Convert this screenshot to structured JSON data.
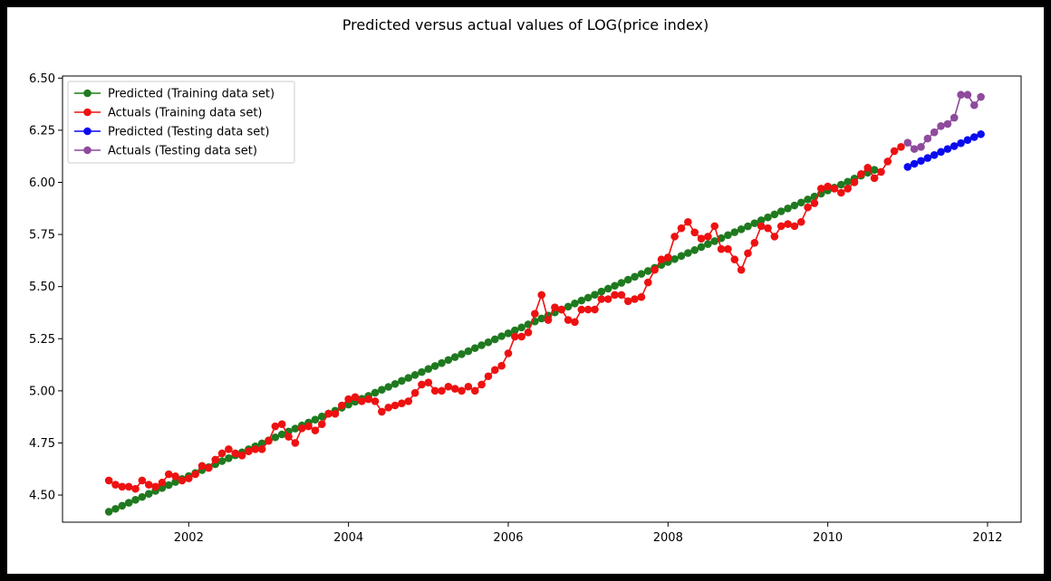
{
  "chart_data": {
    "type": "line",
    "title": "Predicted versus actual values of LOG(price index)",
    "xlabel": "",
    "ylabel": "",
    "xlim": [
      2000.42,
      2012.42
    ],
    "ylim": [
      4.37,
      6.51
    ],
    "x_ticks": [
      2002,
      2004,
      2006,
      2008,
      2010,
      2012
    ],
    "x_tick_labels": [
      "2002",
      "2004",
      "2006",
      "2008",
      "2010",
      "2012"
    ],
    "y_ticks": [
      4.5,
      4.75,
      5.0,
      5.25,
      5.5,
      5.75,
      6.0,
      6.25,
      6.5
    ],
    "y_tick_labels": [
      "4.50",
      "4.75",
      "5.00",
      "5.25",
      "5.50",
      "5.75",
      "6.00",
      "6.25",
      "6.50"
    ],
    "grid": false,
    "legend_position": "top-left",
    "series": [
      {
        "name": "Predicted (Training data set)",
        "color": "#1f7a1f",
        "x_start": 2001.0,
        "x_step": 0.0833333,
        "values": [
          4.42,
          4.434,
          4.449,
          4.463,
          4.477,
          4.491,
          4.506,
          4.52,
          4.534,
          4.548,
          4.563,
          4.577,
          4.591,
          4.606,
          4.62,
          4.634,
          4.648,
          4.663,
          4.677,
          4.691,
          4.705,
          4.72,
          4.734,
          4.748,
          4.762,
          4.777,
          4.791,
          4.805,
          4.819,
          4.834,
          4.848,
          4.862,
          4.877,
          4.891,
          4.905,
          4.919,
          4.934,
          4.948,
          4.962,
          4.976,
          4.991,
          5.005,
          5.019,
          5.033,
          5.048,
          5.062,
          5.076,
          5.09,
          5.105,
          5.119,
          5.133,
          5.148,
          5.162,
          5.176,
          5.19,
          5.205,
          5.219,
          5.233,
          5.247,
          5.262,
          5.276,
          5.29,
          5.304,
          5.319,
          5.333,
          5.347,
          5.361,
          5.376,
          5.39,
          5.404,
          5.419,
          5.433,
          5.447,
          5.461,
          5.476,
          5.49,
          5.504,
          5.518,
          5.533,
          5.547,
          5.561,
          5.575,
          5.59,
          5.604,
          5.618,
          5.632,
          5.647,
          5.661,
          5.675,
          5.69,
          5.704,
          5.718,
          5.732,
          5.747,
          5.761,
          5.775,
          5.789,
          5.804,
          5.818,
          5.832,
          5.846,
          5.861,
          5.875,
          5.889,
          5.903,
          5.918,
          5.932,
          5.946,
          5.961,
          5.975,
          5.989,
          6.003,
          6.018,
          6.032,
          6.046,
          6.06
        ]
      },
      {
        "name": "Actuals (Training data set)",
        "color": "#ee1111",
        "x_start": 2001.0,
        "x_step": 0.0833333,
        "values": [
          4.57,
          4.55,
          4.54,
          4.54,
          4.53,
          4.57,
          4.55,
          4.54,
          4.56,
          4.6,
          4.59,
          4.57,
          4.58,
          4.6,
          4.64,
          4.63,
          4.67,
          4.7,
          4.72,
          4.7,
          4.69,
          4.71,
          4.72,
          4.72,
          4.76,
          4.83,
          4.84,
          4.78,
          4.75,
          4.82,
          4.83,
          4.81,
          4.84,
          4.89,
          4.89,
          4.93,
          4.96,
          4.97,
          4.95,
          4.96,
          4.95,
          4.9,
          4.92,
          4.93,
          4.94,
          4.95,
          4.99,
          5.03,
          5.04,
          5.0,
          5.0,
          5.02,
          5.01,
          5.0,
          5.02,
          5.0,
          5.03,
          5.07,
          5.1,
          5.12,
          5.18,
          5.26,
          5.26,
          5.28,
          5.37,
          5.46,
          5.34,
          5.4,
          5.39,
          5.34,
          5.33,
          5.39,
          5.39,
          5.39,
          5.44,
          5.44,
          5.46,
          5.46,
          5.43,
          5.44,
          5.45,
          5.52,
          5.58,
          5.63,
          5.64,
          5.74,
          5.78,
          5.81,
          5.76,
          5.73,
          5.74,
          5.79,
          5.68,
          5.68,
          5.63,
          5.58,
          5.66,
          5.71,
          5.79,
          5.78,
          5.74,
          5.79,
          5.8,
          5.79,
          5.81,
          5.88,
          5.9,
          5.97,
          5.98,
          5.97,
          5.95,
          5.97,
          6.0,
          6.04,
          6.07,
          6.02,
          6.05,
          6.1,
          6.15,
          6.17
        ]
      },
      {
        "name": "Predicted (Testing data set)",
        "color": "#0a0af0",
        "x_start": 2011.0,
        "x_step": 0.0833333,
        "values": [
          6.074,
          6.089,
          6.103,
          6.117,
          6.131,
          6.146,
          6.16,
          6.174,
          6.188,
          6.203,
          6.217,
          6.231
        ]
      },
      {
        "name": "Actuals (Testing data set)",
        "color": "#8e4a9c",
        "x_start": 2011.0,
        "x_step": 0.0833333,
        "values": [
          6.19,
          6.16,
          6.17,
          6.21,
          6.24,
          6.27,
          6.28,
          6.31,
          6.42,
          6.42,
          6.37,
          6.41
        ]
      }
    ]
  }
}
